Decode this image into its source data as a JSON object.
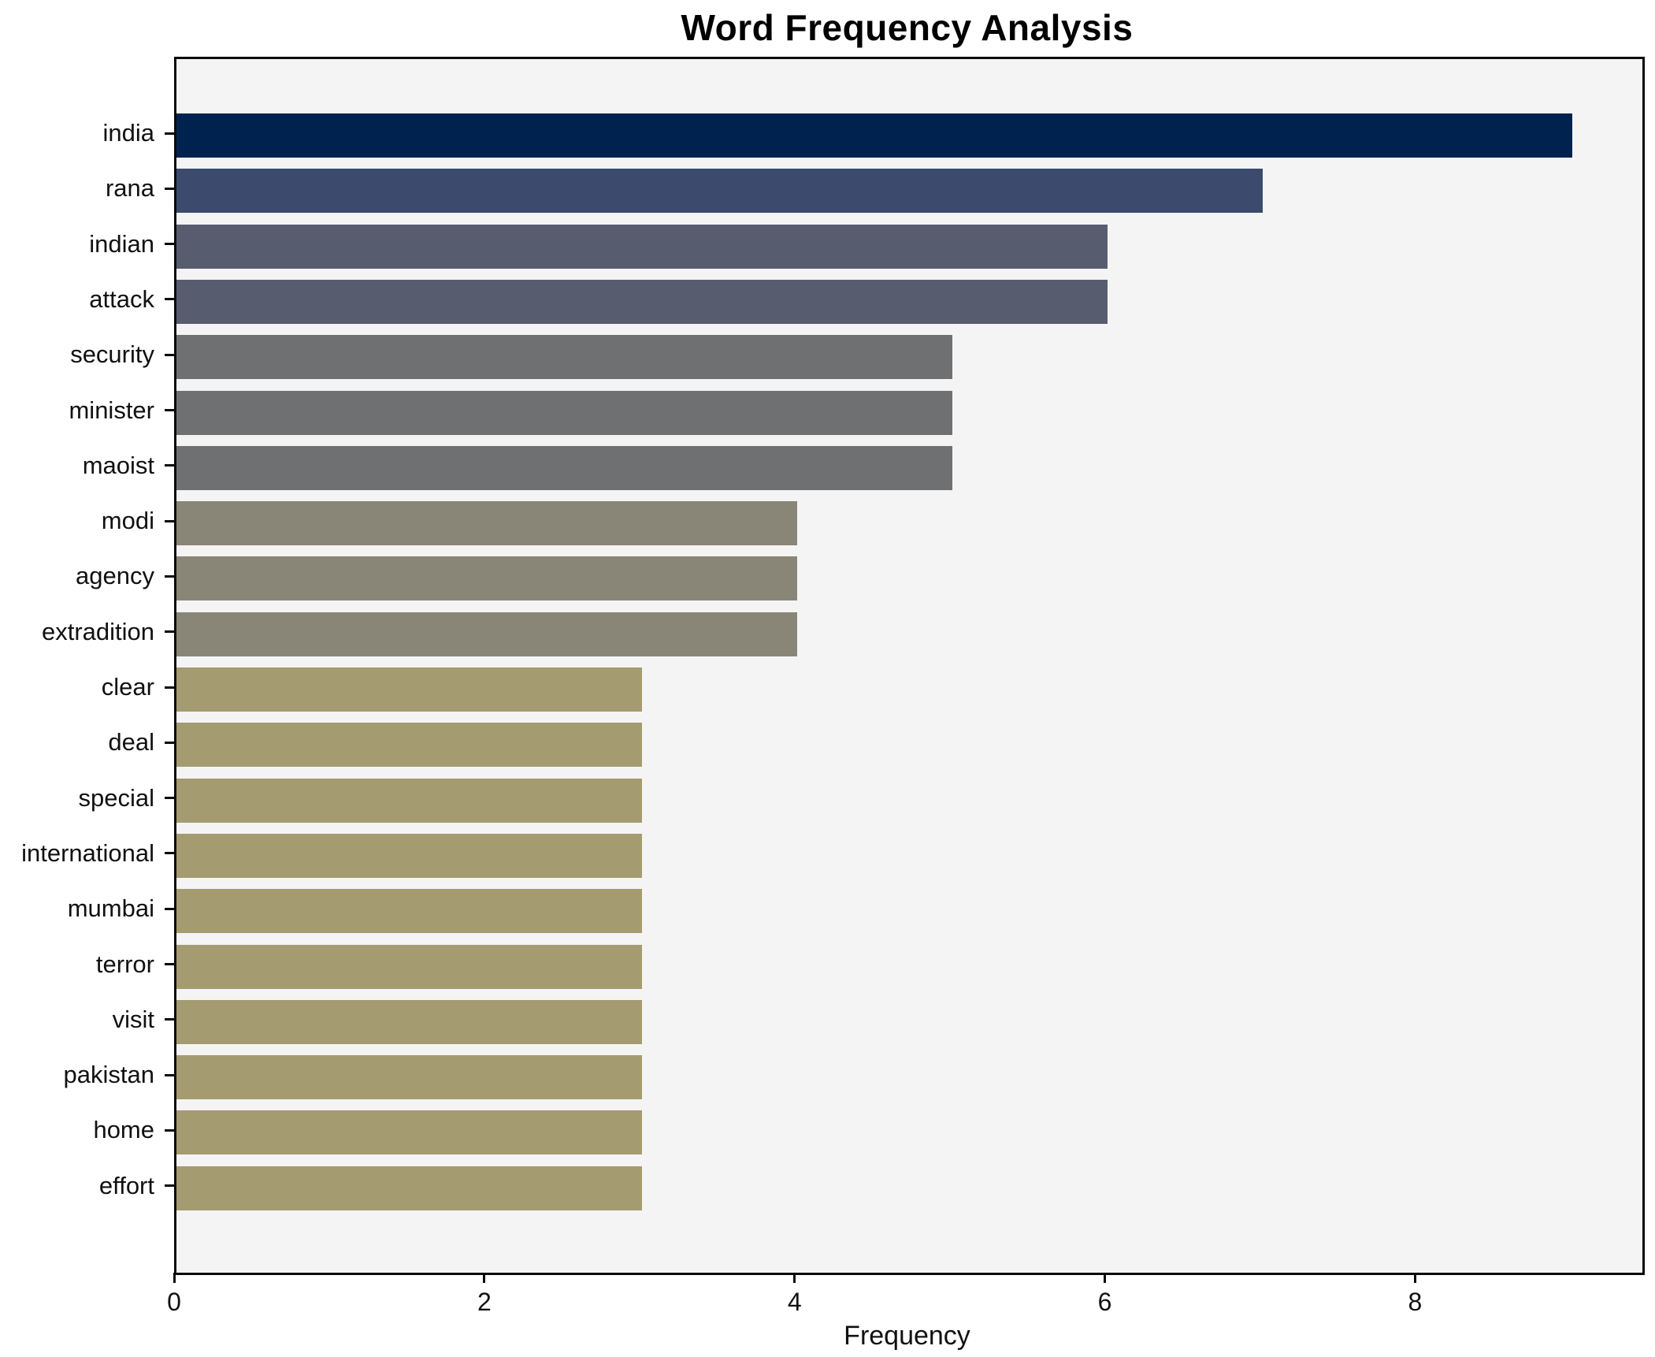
{
  "title": "Word Frequency Analysis",
  "chart_data": {
    "type": "bar",
    "orientation": "horizontal",
    "title": "Word Frequency Analysis",
    "xlabel": "Frequency",
    "ylabel": "",
    "categories": [
      "india",
      "rana",
      "indian",
      "attack",
      "security",
      "minister",
      "maoist",
      "modi",
      "agency",
      "extradition",
      "clear",
      "deal",
      "special",
      "international",
      "mumbai",
      "terror",
      "visit",
      "pakistan",
      "home",
      "effort"
    ],
    "values": [
      9,
      7,
      6,
      6,
      5,
      5,
      5,
      4,
      4,
      4,
      3,
      3,
      3,
      3,
      3,
      3,
      3,
      3,
      3,
      3
    ],
    "bar_colors": [
      "#00224e",
      "#3b4a6d",
      "#575d6e",
      "#575d6e",
      "#6f7072",
      "#6f7072",
      "#6f7072",
      "#898677",
      "#898677",
      "#898677",
      "#a49b70",
      "#a49b70",
      "#a49b70",
      "#a49b70",
      "#a49b70",
      "#a49b70",
      "#a49b70",
      "#a49b70",
      "#a49b70",
      "#a49b70"
    ],
    "xlim": [
      0,
      9.45
    ],
    "xticks": [
      0,
      2,
      4,
      6,
      8
    ],
    "grid": false,
    "legend": false,
    "plot_bg": "#f5f4f5",
    "figure_bg": "#ffffff",
    "spine_color": "#0a0a0a",
    "title_color": "#000000",
    "tick_label_color": "#111111"
  }
}
